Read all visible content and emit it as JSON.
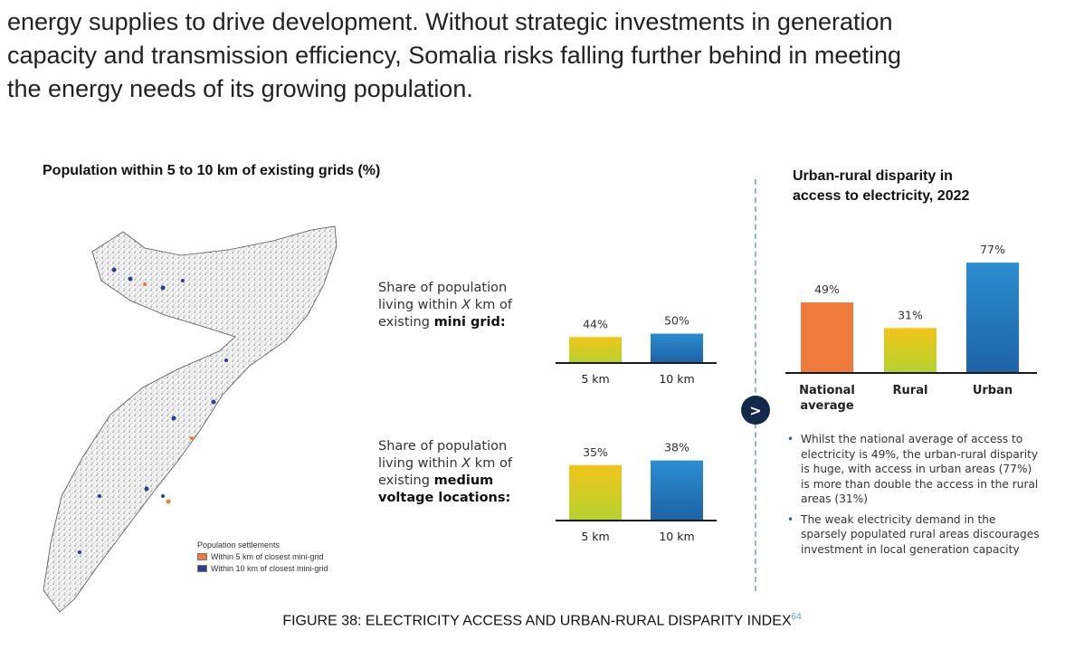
{
  "intro": {
    "line1": "energy supplies to drive development. Without strategic investments in generation",
    "line2": "capacity and transmission efficiency, Somalia risks falling further behind in meeting",
    "line3": "the energy needs of its growing population."
  },
  "left_title": "Population within 5 to 10 km of existing grids (%)",
  "right_title": {
    "line1": "Urban-rural disparity in",
    "line2": "access to electricity, 2022"
  },
  "map_legend": {
    "title": "Population settlements",
    "items": [
      {
        "label": "Within 5 km of closest mini-grid",
        "color": "#f07a3a"
      },
      {
        "label": "Within 10 km of closest mini-grid",
        "color": "#2c3b9c"
      }
    ]
  },
  "mini_grid_label": {
    "line1": "Share of population",
    "line2_pre": "living within ",
    "line2_x": "X",
    "line2_post": " km of",
    "line3_pre": "existing ",
    "line3_bold": "mini grid:"
  },
  "medium_voltage_label": {
    "line1": "Share of population",
    "line2_pre": "living within ",
    "line2_x": "X",
    "line2_post": " km of",
    "line3_pre": "existing ",
    "line3_bold": "medium",
    "line4_bold": "voltage locations:"
  },
  "arrow_symbol": ">",
  "notes": [
    "Whilst the national average of access to electricity is 49%, the urban-rural disparity is huge, with access in urban areas (77%) is more than double the access in the rural areas (31%)",
    "The weak electricity demand in the sparsely populated rural areas discourages investment in local generation capacity"
  ],
  "caption": {
    "text": "FIGURE 38: ELECTRICITY ACCESS AND URBAN-RURAL DISPARITY INDEX",
    "sup": "64"
  },
  "colors": {
    "yellow_top": "#f2c51a",
    "yellow_bottom": "#b5d22e",
    "blue_top": "#2a8ed0",
    "blue_bottom": "#1f63a8",
    "orange": "#ee7b3b",
    "arrow_bg": "#13294b",
    "divider": "#8fb8d2"
  },
  "chart_data": [
    {
      "type": "bar",
      "id": "mini-grid",
      "categories": [
        "5 km",
        "10 km"
      ],
      "values": [
        44,
        50
      ],
      "labels": [
        "44%",
        "50%"
      ],
      "colors": [
        "yellow",
        "blue"
      ],
      "unit": "%"
    },
    {
      "type": "bar",
      "id": "medium-voltage",
      "categories": [
        "5 km",
        "10 km"
      ],
      "values": [
        35,
        38
      ],
      "labels": [
        "35%",
        "38%"
      ],
      "colors": [
        "yellow",
        "blue"
      ],
      "unit": "%"
    },
    {
      "type": "bar",
      "id": "urban-rural",
      "categories": [
        [
          "National",
          "average"
        ],
        [
          "Rural"
        ],
        [
          "Urban"
        ]
      ],
      "values": [
        49,
        31,
        77
      ],
      "labels": [
        "49%",
        "31%",
        "77%"
      ],
      "colors": [
        "orange",
        "yellow",
        "blue"
      ],
      "unit": "%"
    }
  ]
}
